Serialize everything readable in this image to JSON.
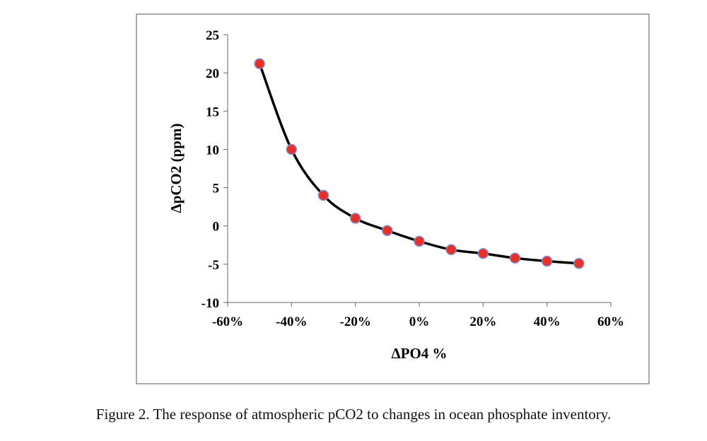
{
  "chart_data": {
    "type": "scatter",
    "title": "",
    "xlabel": "ΔPO4 %",
    "ylabel": "ΔpCO2 (ppm)",
    "xlim": [
      -60,
      60
    ],
    "ylim": [
      -10,
      25
    ],
    "x_ticks": [
      "-60%",
      "-40%",
      "-20%",
      "0%",
      "20%",
      "40%",
      "60%"
    ],
    "x_tick_values": [
      -60,
      -40,
      -20,
      0,
      20,
      40,
      60
    ],
    "y_ticks": [
      "25",
      "20",
      "15",
      "10",
      "5",
      "0",
      "-5",
      "-10"
    ],
    "y_tick_values": [
      25,
      20,
      15,
      10,
      5,
      0,
      -5,
      -10
    ],
    "grid": false,
    "legend": "none",
    "trendline": "smooth curve",
    "marker_color": "#e8302a",
    "marker_edge_color": "#7f8fd0",
    "line_color": "#000000",
    "x": [
      -50,
      -40,
      -30,
      -20,
      -10,
      0,
      10,
      20,
      30,
      40,
      50
    ],
    "y": [
      21.2,
      10.0,
      4.0,
      1.0,
      -0.6,
      -2.0,
      -3.1,
      -3.6,
      -4.2,
      -4.6,
      -4.9
    ]
  },
  "caption": "Figure 2. The response of atmospheric pCO2 to changes in ocean phosphate inventory."
}
